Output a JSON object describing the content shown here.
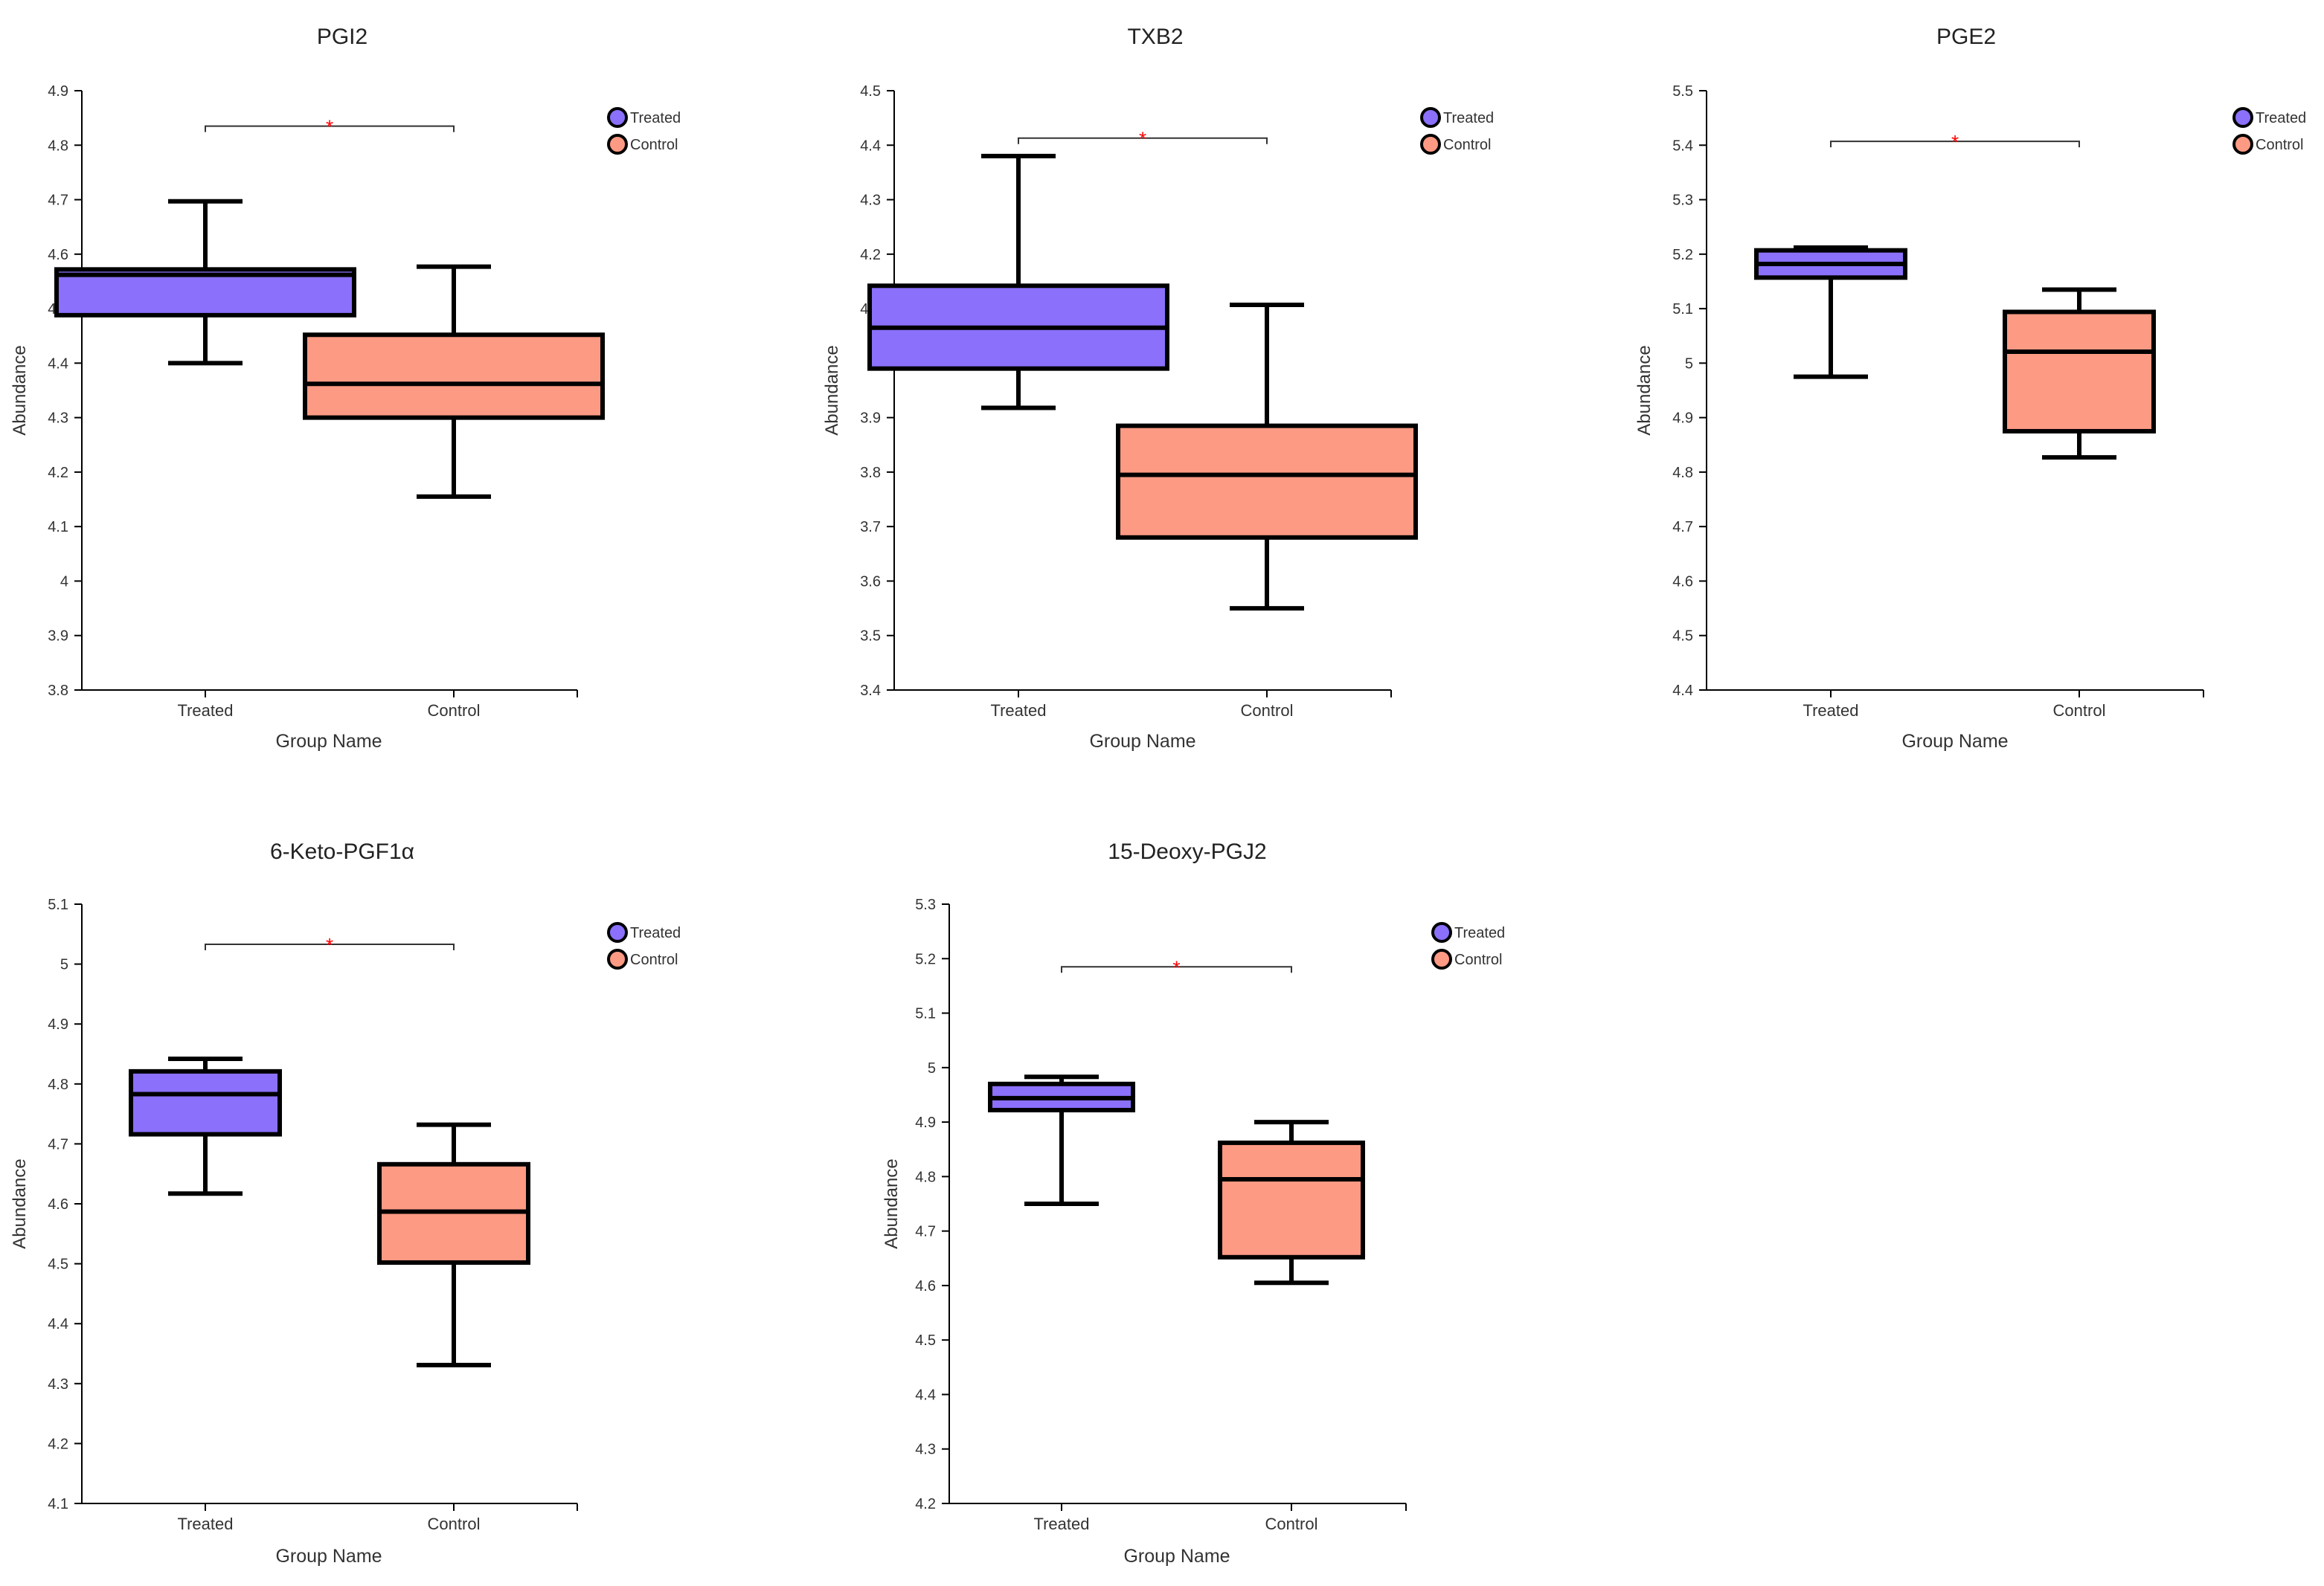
{
  "colors": {
    "treated": "#8b70fb",
    "control": "#fd9a84",
    "axis": "#000000",
    "significance": "#ff0000",
    "bracket": "#333333"
  },
  "chart_data": [
    {
      "type": "box",
      "title": "PGI2",
      "xlabel": "Group Name",
      "ylabel": "Abundance",
      "categories": [
        "Treated",
        "Control"
      ],
      "yticks": [
        "3.8",
        "3.9",
        "4",
        "4.1",
        "4.2",
        "4.3",
        "4.4",
        "4.5",
        "4.6",
        "4.7",
        "4.8",
        "4.9"
      ],
      "ylim": [
        3.8,
        4.9
      ],
      "legend": [
        "Treated",
        "Control"
      ],
      "legend_position": "top-right",
      "significance": {
        "label": "*",
        "y": 4.835
      },
      "boxes": [
        {
          "group": "Treated",
          "min": 4.4,
          "q1": 4.488,
          "median": 4.562,
          "q3": 4.572,
          "max": 4.697
        },
        {
          "group": "Control",
          "min": 4.155,
          "q1": 4.3,
          "median": 4.362,
          "q3": 4.452,
          "max": 4.577
        }
      ]
    },
    {
      "type": "box",
      "title": "TXB2",
      "xlabel": "Group Name",
      "ylabel": "Abundance",
      "categories": [
        "Treated",
        "Control"
      ],
      "yticks": [
        "3.4",
        "3.5",
        "3.6",
        "3.7",
        "3.8",
        "3.9",
        "4",
        "4.1",
        "4.2",
        "4.3",
        "4.4",
        "4.5"
      ],
      "ylim": [
        3.4,
        4.5
      ],
      "legend": [
        "Treated",
        "Control"
      ],
      "legend_position": "top-right",
      "significance": {
        "label": "*",
        "y": 4.413
      },
      "boxes": [
        {
          "group": "Treated",
          "min": 3.918,
          "q1": 3.99,
          "median": 4.065,
          "q3": 4.142,
          "max": 4.38
        },
        {
          "group": "Control",
          "min": 3.55,
          "q1": 3.68,
          "median": 3.795,
          "q3": 3.885,
          "max": 4.107
        }
      ]
    },
    {
      "type": "box",
      "title": "PGE2",
      "xlabel": "Group Name",
      "ylabel": "Abundance",
      "categories": [
        "Treated",
        "Control"
      ],
      "yticks": [
        "4.4",
        "4.5",
        "4.6",
        "4.7",
        "4.8",
        "4.9",
        "5",
        "5.1",
        "5.2",
        "5.3",
        "5.4",
        "5.5"
      ],
      "ylim": [
        4.4,
        5.5
      ],
      "legend": [
        "Treated",
        "Control"
      ],
      "legend_position": "top-right",
      "significance": {
        "label": "*",
        "y": 5.407
      },
      "boxes": [
        {
          "group": "Treated",
          "min": 4.975,
          "q1": 5.157,
          "median": 5.182,
          "q3": 5.207,
          "max": 5.212
        },
        {
          "group": "Control",
          "min": 4.827,
          "q1": 4.875,
          "median": 5.021,
          "q3": 5.094,
          "max": 5.135
        }
      ]
    },
    {
      "type": "box",
      "title": "6-Keto-PGF1α",
      "xlabel": "Group Name",
      "ylabel": "Abundance",
      "categories": [
        "Treated",
        "Control"
      ],
      "yticks": [
        "4.1",
        "4.2",
        "4.3",
        "4.4",
        "4.5",
        "4.6",
        "4.7",
        "4.8",
        "4.9",
        "5",
        "5.1"
      ],
      "ylim": [
        4.1,
        5.1
      ],
      "legend": [
        "Treated",
        "Control"
      ],
      "legend_position": "top-right",
      "significance": {
        "label": "*",
        "y": 5.033
      },
      "boxes": [
        {
          "group": "Treated",
          "min": 4.617,
          "q1": 4.716,
          "median": 4.783,
          "q3": 4.821,
          "max": 4.842
        },
        {
          "group": "Control",
          "min": 4.331,
          "q1": 4.502,
          "median": 4.587,
          "q3": 4.666,
          "max": 4.732
        }
      ]
    },
    {
      "type": "box",
      "title": "15-Deoxy-PGJ2",
      "xlabel": "Group Name",
      "ylabel": "Abundance",
      "categories": [
        "Treated",
        "Control"
      ],
      "yticks": [
        "4.2",
        "4.3",
        "4.4",
        "4.5",
        "4.6",
        "4.7",
        "4.8",
        "4.9",
        "5",
        "5.1",
        "5.2",
        "5.3"
      ],
      "ylim": [
        4.2,
        5.3
      ],
      "legend": [
        "Treated",
        "Control"
      ],
      "legend_position": "top-right",
      "significance": {
        "label": "*",
        "y": 5.185
      },
      "boxes": [
        {
          "group": "Treated",
          "min": 4.75,
          "q1": 4.922,
          "median": 4.944,
          "q3": 4.97,
          "max": 4.983
        },
        {
          "group": "Control",
          "min": 4.605,
          "q1": 4.652,
          "median": 4.795,
          "q3": 4.862,
          "max": 4.9
        }
      ]
    }
  ]
}
